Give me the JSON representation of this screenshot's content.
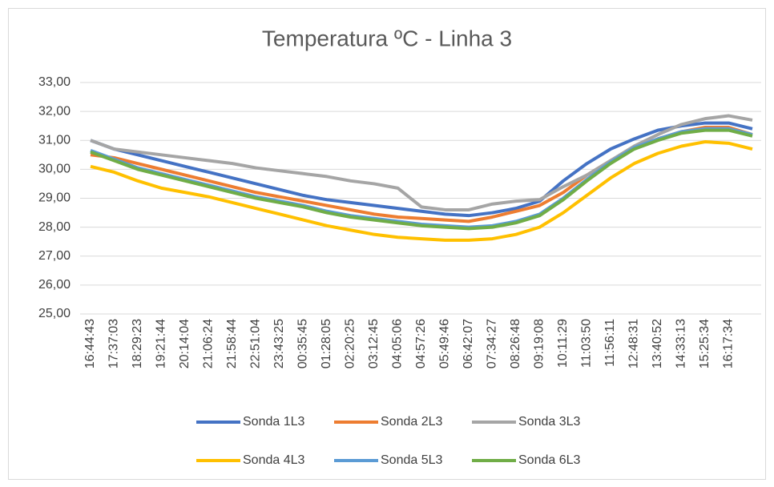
{
  "chart_data": {
    "type": "line",
    "title": "Temperatura ºC - Linha 3",
    "categories": [
      "16:44:43",
      "17:37:03",
      "18:29:23",
      "19:21:44",
      "20:14:04",
      "21:06:24",
      "21:58:44",
      "22:51:04",
      "23:43:25",
      "00:35:45",
      "01:28:05",
      "02:20:25",
      "03:12:45",
      "04:05:06",
      "04:57:26",
      "05:49:46",
      "06:42:07",
      "07:34:27",
      "08:26:48",
      "09:19:08",
      "10:11:29",
      "11:03:50",
      "11:56:11",
      "12:48:31",
      "13:40:52",
      "14:33:13",
      "15:25:34",
      "16:17:34",
      null
    ],
    "series": [
      {
        "name": "Sonda 1L3",
        "color": "#4472c4",
        "values": [
          31.0,
          30.7,
          30.5,
          30.3,
          30.1,
          29.9,
          29.7,
          29.5,
          29.3,
          29.1,
          28.95,
          28.85,
          28.75,
          28.65,
          28.55,
          28.45,
          28.4,
          28.5,
          28.65,
          28.9,
          29.6,
          30.2,
          30.7,
          31.05,
          31.35,
          31.5,
          31.6,
          31.6,
          31.4
        ]
      },
      {
        "name": "Sonda 2L3",
        "color": "#ed7d31",
        "values": [
          30.5,
          30.4,
          30.2,
          30.0,
          29.8,
          29.6,
          29.4,
          29.2,
          29.05,
          28.9,
          28.75,
          28.6,
          28.45,
          28.35,
          28.3,
          28.25,
          28.2,
          28.35,
          28.55,
          28.75,
          29.2,
          29.8,
          30.3,
          30.75,
          31.05,
          31.3,
          31.45,
          31.45,
          31.2
        ]
      },
      {
        "name": "Sonda 3L3",
        "color": "#a5a5a5",
        "values": [
          31.0,
          30.7,
          30.6,
          30.5,
          30.4,
          30.3,
          30.2,
          30.05,
          29.95,
          29.85,
          29.75,
          29.6,
          29.5,
          29.35,
          28.7,
          28.6,
          28.6,
          28.8,
          28.9,
          28.95,
          29.4,
          29.8,
          30.3,
          30.8,
          31.2,
          31.55,
          31.75,
          31.85,
          31.7
        ]
      },
      {
        "name": "Sonda 4L3",
        "color": "#ffc000",
        "values": [
          30.1,
          29.9,
          29.6,
          29.35,
          29.2,
          29.05,
          28.85,
          28.65,
          28.45,
          28.25,
          28.05,
          27.9,
          27.75,
          27.65,
          27.6,
          27.55,
          27.55,
          27.6,
          27.75,
          28.0,
          28.5,
          29.1,
          29.7,
          30.2,
          30.55,
          30.8,
          30.95,
          30.9,
          30.7
        ]
      },
      {
        "name": "Sonda 5L3",
        "color": "#5b9bd5",
        "values": [
          30.65,
          30.35,
          30.05,
          29.85,
          29.65,
          29.45,
          29.25,
          29.05,
          28.9,
          28.75,
          28.55,
          28.4,
          28.3,
          28.2,
          28.1,
          28.05,
          28.0,
          28.05,
          28.2,
          28.45,
          29.0,
          29.65,
          30.25,
          30.75,
          31.05,
          31.3,
          31.4,
          31.4,
          31.2
        ]
      },
      {
        "name": "Sonda 6L3",
        "color": "#70ad47",
        "values": [
          30.6,
          30.3,
          30.0,
          29.8,
          29.6,
          29.4,
          29.2,
          29.0,
          28.85,
          28.7,
          28.5,
          28.35,
          28.25,
          28.15,
          28.05,
          28.0,
          27.95,
          28.0,
          28.15,
          28.4,
          28.95,
          29.6,
          30.2,
          30.7,
          31.0,
          31.25,
          31.35,
          31.35,
          31.15
        ]
      }
    ],
    "ylim": [
      25,
      33
    ],
    "yticks": [
      {
        "value": 25,
        "label": "25,00"
      },
      {
        "value": 26,
        "label": "26,00"
      },
      {
        "value": 27,
        "label": "27,00"
      },
      {
        "value": 28,
        "label": "28,00"
      },
      {
        "value": 29,
        "label": "29,00"
      },
      {
        "value": 30,
        "label": "30,00"
      },
      {
        "value": 31,
        "label": "31,00"
      },
      {
        "value": 32,
        "label": "32,00"
      },
      {
        "value": 33,
        "label": "33,00"
      }
    ],
    "grid": true,
    "legend": "bottom"
  }
}
